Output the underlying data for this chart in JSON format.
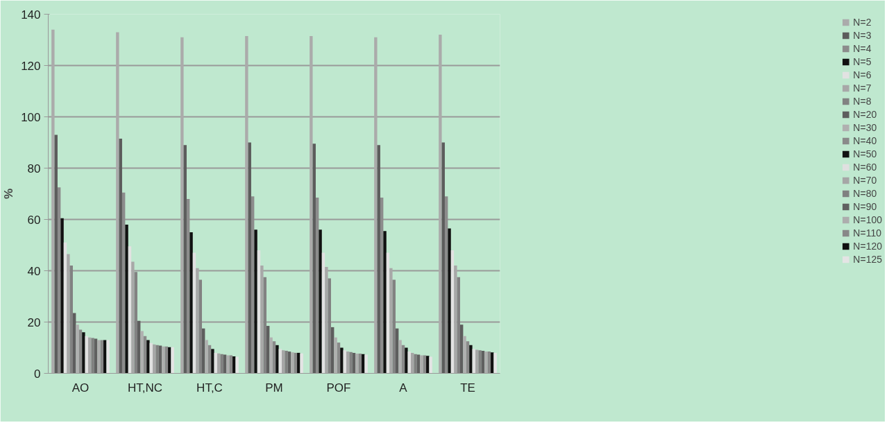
{
  "chart_data": {
    "type": "bar",
    "ylabel": "%",
    "categories": [
      "AO",
      "HT,NC",
      "HT,C",
      "PM",
      "POF",
      "A",
      "TE"
    ],
    "ylim": [
      0,
      140
    ],
    "yticks": [
      0,
      20,
      40,
      60,
      80,
      100,
      120,
      140
    ],
    "grid": "y",
    "legend": "right",
    "series": [
      {
        "name": "N=2",
        "color": "#ababab",
        "values": [
          134,
          133,
          131,
          131.5,
          131.5,
          131,
          132
        ]
      },
      {
        "name": "N=3",
        "color": "#5c5c5c",
        "values": [
          93,
          91.5,
          89,
          90,
          89.5,
          89,
          90
        ]
      },
      {
        "name": "N=4",
        "color": "#8c8c8c",
        "values": [
          72.5,
          70.5,
          68,
          69,
          68.5,
          68.5,
          69
        ]
      },
      {
        "name": "N=5",
        "color": "#111111",
        "values": [
          60.5,
          58,
          55,
          56,
          56,
          55.5,
          56.5
        ]
      },
      {
        "name": "N=6",
        "color": "#e2e2e2",
        "values": [
          51,
          49.5,
          47,
          48,
          47,
          47,
          48
        ]
      },
      {
        "name": "N=7",
        "color": "#a8a8a8",
        "values": [
          46.5,
          43.5,
          41,
          42,
          41.5,
          41,
          42
        ]
      },
      {
        "name": "N=8",
        "color": "#828282",
        "values": [
          42,
          39.5,
          36.5,
          37.5,
          37,
          36.5,
          37.5
        ]
      },
      {
        "name": "N=20",
        "color": "#5e5e5e",
        "values": [
          23.5,
          20.5,
          17.5,
          18.5,
          18,
          17.5,
          19
        ]
      },
      {
        "name": "N=30",
        "color": "#b0b0b0",
        "values": [
          19,
          16.5,
          13,
          14,
          14,
          13,
          14.5
        ]
      },
      {
        "name": "N=40",
        "color": "#8a8a8a",
        "values": [
          17,
          14.5,
          11,
          12.5,
          12,
          11,
          12.5
        ]
      },
      {
        "name": "N=50",
        "color": "#121212",
        "values": [
          16,
          13,
          9.5,
          11,
          10,
          10,
          11
        ]
      },
      {
        "name": "N=60",
        "color": "#e0e0e0",
        "values": [
          14.5,
          11.8,
          8,
          9.5,
          9,
          8.5,
          9.5
        ]
      },
      {
        "name": "N=70",
        "color": "#a6a6a6",
        "values": [
          14,
          11.3,
          7.8,
          9,
          8.5,
          8,
          9.2
        ]
      },
      {
        "name": "N=80",
        "color": "#808080",
        "values": [
          13.8,
          11,
          7.5,
          8.8,
          8.3,
          7.5,
          9
        ]
      },
      {
        "name": "N=90",
        "color": "#606060",
        "values": [
          13.5,
          10.8,
          7.3,
          8.5,
          8,
          7.3,
          8.8
        ]
      },
      {
        "name": "N=100",
        "color": "#adadad",
        "values": [
          13,
          10.5,
          7,
          8.2,
          7.7,
          7,
          8.5
        ]
      },
      {
        "name": "N=110",
        "color": "#888888",
        "values": [
          13,
          10.5,
          7,
          8,
          7.7,
          7,
          8.5
        ]
      },
      {
        "name": "N=120",
        "color": "#101010",
        "values": [
          13,
          10.2,
          6.6,
          8,
          7.5,
          6.8,
          8.2
        ]
      },
      {
        "name": "N=125",
        "color": "#e4e4e4",
        "values": [
          13,
          10.2,
          6.5,
          7.8,
          7.3,
          6.5,
          8
        ]
      }
    ]
  }
}
